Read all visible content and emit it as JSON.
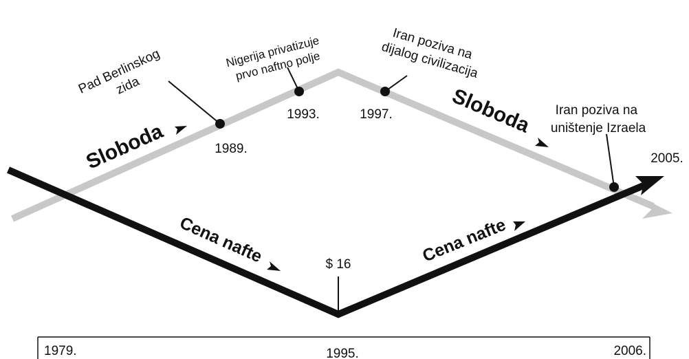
{
  "lines": {
    "freedom": "Sloboda",
    "oil": "Cena nafte"
  },
  "events": [
    {
      "label": [
        "Pad Berlinskog",
        "zida"
      ],
      "year": "1989."
    },
    {
      "label": [
        "Nigerija privatizuje",
        "prvo naftno polje"
      ],
      "year": "1993."
    },
    {
      "label": [
        "Iran poziva na",
        "dijalog civilizacija"
      ],
      "year": "1997."
    },
    {
      "label": [
        "Iran poziva na",
        "uništenje Izraela"
      ]
    }
  ],
  "price_label": "$ 16",
  "end_label": "2005.",
  "axis": [
    "1979.",
    "1995.",
    "2006."
  ]
}
